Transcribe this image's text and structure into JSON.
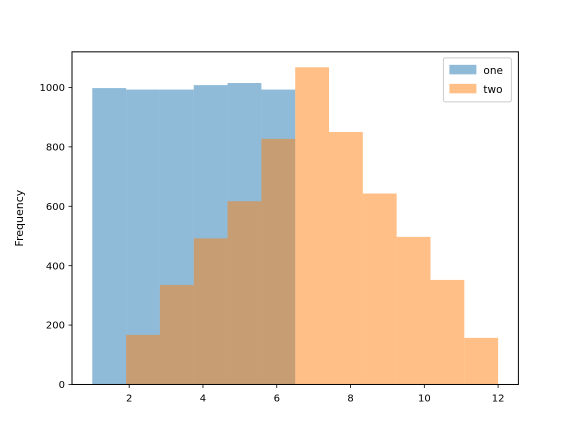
{
  "chart_data": {
    "type": "bar",
    "histogram": true,
    "overlay": true,
    "alpha": 0.5,
    "ylabel": "Frequency",
    "xlabel": "",
    "xlim": [
      0.45,
      12.55
    ],
    "ylim": [
      0,
      1120
    ],
    "xticks": [
      2,
      4,
      6,
      8,
      10,
      12
    ],
    "yticks": [
      0,
      200,
      400,
      600,
      800,
      1000
    ],
    "grid": false,
    "legend_position": "upper right",
    "series": [
      {
        "name": "one",
        "color": "#1f77b4",
        "bins": [
          {
            "x0": 1.0,
            "x1": 1.9167,
            "value": 998
          },
          {
            "x0": 1.9167,
            "x1": 2.8333,
            "value": 993
          },
          {
            "x0": 2.8333,
            "x1": 3.75,
            "value": 993
          },
          {
            "x0": 3.75,
            "x1": 4.6667,
            "value": 1008
          },
          {
            "x0": 4.6667,
            "x1": 5.5833,
            "value": 1015
          },
          {
            "x0": 5.5833,
            "x1": 6.5,
            "value": 993
          }
        ]
      },
      {
        "name": "two",
        "color": "#ff7f0e",
        "bins": [
          {
            "x0": 1.9167,
            "x1": 2.8333,
            "value": 167
          },
          {
            "x0": 2.8333,
            "x1": 3.75,
            "value": 335
          },
          {
            "x0": 3.75,
            "x1": 4.6667,
            "value": 492
          },
          {
            "x0": 4.6667,
            "x1": 5.5833,
            "value": 617
          },
          {
            "x0": 5.5833,
            "x1": 6.5,
            "value": 827
          },
          {
            "x0": 6.5,
            "x1": 7.4167,
            "value": 1068
          },
          {
            "x0": 7.4167,
            "x1": 8.3333,
            "value": 850
          },
          {
            "x0": 8.3333,
            "x1": 9.25,
            "value": 643
          },
          {
            "x0": 9.25,
            "x1": 10.1667,
            "value": 497
          },
          {
            "x0": 10.1667,
            "x1": 11.0833,
            "value": 352
          },
          {
            "x0": 11.0833,
            "x1": 12.0,
            "value": 157
          }
        ]
      }
    ]
  }
}
